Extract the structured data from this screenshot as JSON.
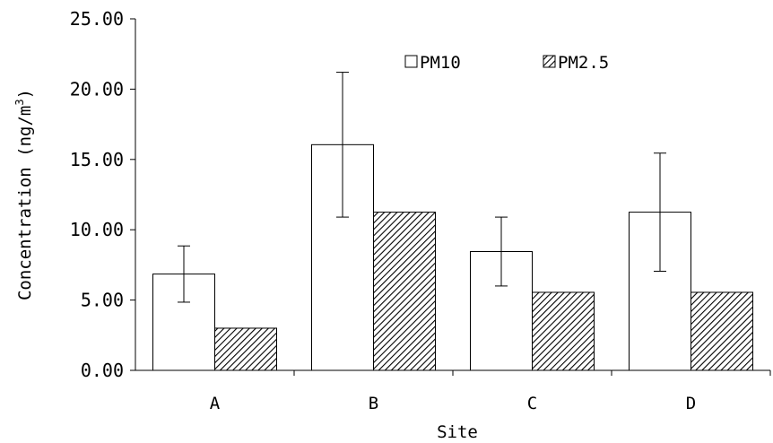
{
  "chart_data": {
    "type": "bar",
    "categories": [
      "A",
      "B",
      "C",
      "D"
    ],
    "series": [
      {
        "name": "PM10",
        "values": [
          6.85,
          16.05,
          8.45,
          11.25
        ],
        "error": [
          2.0,
          5.15,
          2.45,
          4.2
        ],
        "fill": "#ffffff",
        "pattern": "none"
      },
      {
        "name": "PM2.5",
        "values": [
          3.0,
          11.25,
          5.55,
          5.55
        ],
        "fill": "#ffffff",
        "pattern": "diagonal-hatch"
      }
    ],
    "xlabel": "Site",
    "ylabel_parts": [
      "Concentration (ng/m",
      "3",
      ")"
    ],
    "ylim": [
      0,
      25
    ],
    "yticks": [
      "0.00",
      "5.00",
      "10.00",
      "15.00",
      "20.00",
      "25.00"
    ],
    "ytick_values": [
      0,
      5,
      10,
      15,
      20,
      25
    ],
    "legend": {
      "position": "top-center",
      "items": [
        "PM10",
        "PM2.5"
      ]
    },
    "grid": false,
    "colors": {
      "axis": "#000000",
      "bar_stroke": "#000000",
      "hatch": "#000000"
    }
  }
}
